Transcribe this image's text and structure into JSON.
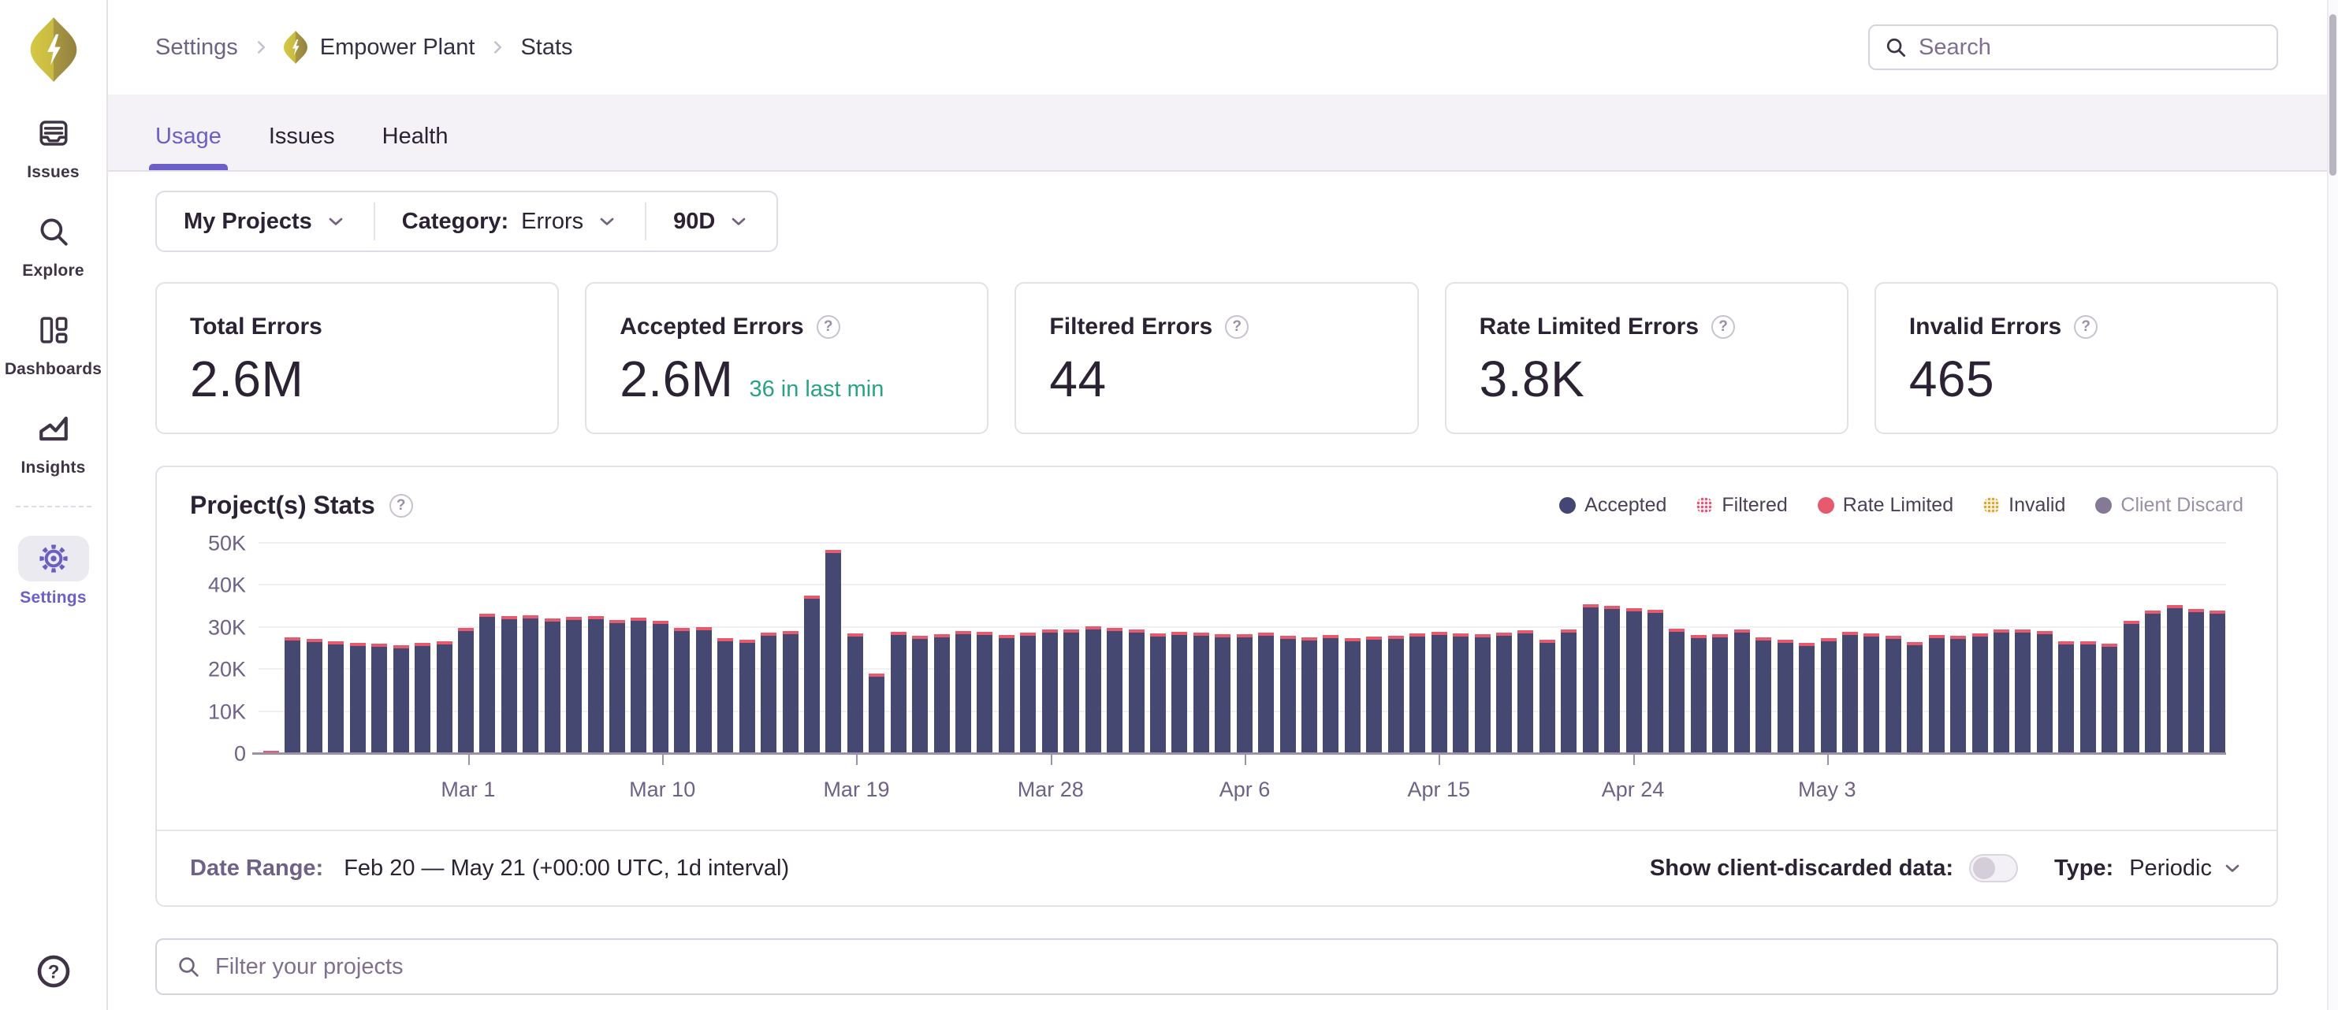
{
  "colors": {
    "accent_purple": "#6C5FC7",
    "bar_accepted": "#454871",
    "bar_rate_limited": "#E7596D",
    "green_note": "#2BA185",
    "border": "#E4E0E8",
    "text_dark": "#2B2233",
    "text_muted": "#6F6287",
    "logo_yellow": "#D2C43F",
    "logo_olive": "#9A8A3F"
  },
  "icons": {
    "logo": "sentry-diamond-bolt",
    "sidebar": [
      "issues-inbox-icon",
      "explore-magnifier-icon",
      "dashboards-grid-icon",
      "insights-chart-icon",
      "settings-gear-icon"
    ],
    "help": "help-question-icon",
    "search": "magnifier-icon",
    "dropdown": "chevron-down-icon",
    "breadcrumb_separator": "chevron-right-icon",
    "card_help": "question-circle-icon"
  },
  "sidebar": {
    "items": [
      {
        "label": "Issues"
      },
      {
        "label": "Explore"
      },
      {
        "label": "Dashboards"
      },
      {
        "label": "Insights"
      },
      {
        "label": "Settings",
        "active": true
      }
    ]
  },
  "header": {
    "breadcrumb": {
      "item1": "Settings",
      "item2": "Empower Plant",
      "item3": "Stats"
    },
    "search": {
      "placeholder": "Search"
    }
  },
  "tabs": {
    "usage": "Usage",
    "issues": "Issues",
    "health": "Health",
    "active": "Usage"
  },
  "filter_bar": {
    "projects": "My Projects",
    "category_label": "Category:",
    "category_value": "Errors",
    "date_range": "90D"
  },
  "cards": [
    {
      "title": "Total Errors",
      "value": "2.6M"
    },
    {
      "title": "Accepted Errors",
      "value": "2.6M",
      "note": "36 in last min"
    },
    {
      "title": "Filtered Errors",
      "value": "44"
    },
    {
      "title": "Rate Limited Errors",
      "value": "3.8K"
    },
    {
      "title": "Invalid Errors",
      "value": "465"
    }
  ],
  "chart_panel": {
    "title": "Project(s) Stats",
    "legend": [
      {
        "label": "Accepted"
      },
      {
        "label": "Filtered"
      },
      {
        "label": "Rate Limited"
      },
      {
        "label": "Invalid"
      },
      {
        "label": "Client Discard"
      }
    ],
    "footer": {
      "date_range_label": "Date Range:",
      "date_range_value": "Feb 20 — May 21 (+00:00 UTC, 1d interval)",
      "toggle_label": "Show client-discarded data:",
      "toggle_on": false,
      "type_label": "Type:",
      "type_value": "Periodic"
    }
  },
  "chart_data": {
    "type": "bar",
    "stacked": true,
    "title": "Project(s) Stats",
    "x_start": "Feb 20",
    "x_end": "May 21",
    "interval": "1d",
    "num_days": 91,
    "ylim": [
      0,
      50000
    ],
    "grid": true,
    "legend_position": "top-right",
    "y_ticks": [
      "0",
      "10K",
      "20K",
      "30K",
      "40K",
      "50K"
    ],
    "x_ticks": [
      {
        "label": "Mar 1",
        "day_index": 9
      },
      {
        "label": "Mar 10",
        "day_index": 18
      },
      {
        "label": "Mar 19",
        "day_index": 27
      },
      {
        "label": "Mar 28",
        "day_index": 36
      },
      {
        "label": "Apr 6",
        "day_index": 45
      },
      {
        "label": "Apr 15",
        "day_index": 54
      },
      {
        "label": "Apr 24",
        "day_index": 63
      },
      {
        "label": "May 3",
        "day_index": 72
      }
    ],
    "series": [
      {
        "name": "Accepted",
        "color": "#454871",
        "values": [
          0,
          26900,
          26500,
          26100,
          25600,
          25400,
          25100,
          25700,
          26100,
          29300,
          32600,
          32000,
          32200,
          31500,
          31900,
          32000,
          31100,
          31600,
          30900,
          29300,
          29400,
          26700,
          26400,
          28100,
          28400,
          36800,
          47800,
          27900,
          18400,
          28200,
          27400,
          27800,
          28400,
          28300,
          27600,
          28100,
          28900,
          28900,
          29600,
          29200,
          28800,
          27900,
          28300,
          28100,
          27800,
          27800,
          28000,
          27300,
          26900,
          27500,
          26700,
          27100,
          27400,
          27900,
          28300,
          27900,
          27700,
          28000,
          28600,
          26400,
          28900,
          34900,
          34500,
          33900,
          33500,
          29100,
          27500,
          27800,
          28900,
          26900,
          26400,
          25700,
          26700,
          28200,
          27900,
          27300,
          25800,
          27500,
          27400,
          27900,
          28900,
          28900,
          28400,
          26000,
          26100,
          25400,
          30900,
          33400,
          34700,
          33800,
          33400
        ]
      },
      {
        "name": "Rate Limited",
        "color": "#E7596D",
        "approx_daily_value": 450
      },
      {
        "name": "Filtered",
        "total_shown_in_card": 44
      },
      {
        "name": "Invalid",
        "total_shown_in_card": 465
      },
      {
        "name": "Client Discard",
        "hidden": true
      }
    ]
  },
  "project_filter": {
    "placeholder": "Filter your projects"
  }
}
